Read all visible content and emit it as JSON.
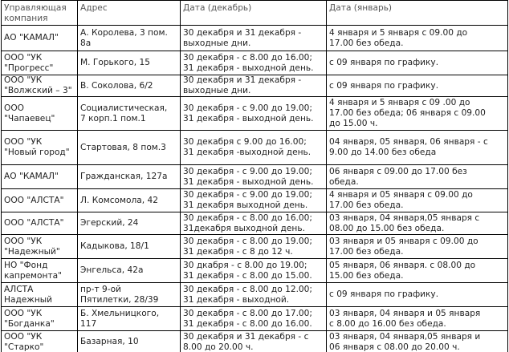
{
  "table": {
    "header": [
      [
        "Управляющая",
        "компания"
      ],
      [
        "Адрес"
      ],
      [
        "Дата (декабрь)"
      ],
      [
        "Дата (январь)"
      ]
    ],
    "rows": [
      [
        [
          "АО \"КАМАЛ\""
        ],
        [
          "А. Королева, 3  пом.",
          "8а"
        ],
        [
          "30 декабря и 31 декабря -",
          "выходные дни."
        ],
        [
          "4 января и 5 января с 09.00 до",
          "17.00 без обеда."
        ]
      ],
      [
        [
          "ООО \"УК",
          "\"Прогресс\""
        ],
        [
          "М. Горького, 15"
        ],
        [
          "30 декабря - с 8.00 до 16.00;",
          "31 декабря - выходной день."
        ],
        [
          "с 09 января по графику."
        ]
      ],
      [
        [
          "ООО \"УК",
          "\"Волжский – 3\""
        ],
        [
          "В. Соколова, 6/2"
        ],
        [
          "30 декабря и 31 декабря -",
          "выходные дни."
        ],
        [
          "с 09 января по графику."
        ]
      ],
      [
        [
          "ООО",
          "\"Чапаевец\""
        ],
        [
          "Социалистическая,",
          "7 корп.1 пом.1"
        ],
        [
          "30 декабря - с 9.00 до 19.00;",
          "31 декабря - выходной день."
        ],
        [
          "4 января и 5 января с 09 .00 до",
          "17.00 без обеда; 06 января с 09.00",
          "до 15.00 ч."
        ]
      ],
      [
        [
          "ООО \"УК",
          "\"Новый город\""
        ],
        [
          "Стартовая, 8 пом.3"
        ],
        [
          "30 декабря с 9.00 до 16.00;",
          "31 декабря -выходной день."
        ],
        [
          "04 января, 05 января, 06 января - с",
          "9.00 до 14.00 без обеда"
        ]
      ],
      [
        [
          "АО \"КАМАЛ\""
        ],
        [
          "Гражданская, 127а"
        ],
        [
          "30 декабря - с 9.00 до 19.00;",
          "31 декабря - выходной день."
        ],
        [
          "06 января с 09.00 до 17.00 без",
          "обеда."
        ]
      ],
      [
        [
          "ООО \"АЛСТА\""
        ],
        [
          "Л. Комсомола, 42"
        ],
        [
          "30 декабря  - с 9.00 до 19.00;",
          "31 декабря выходной день."
        ],
        [
          "4 января и 05 января  с 09.00 до",
          "17.00 без обеда."
        ]
      ],
      [
        [
          "ООО \"АЛСТА\""
        ],
        [
          "Эгерский, 24"
        ],
        [
          "30 декабря - с 8.00 до 16.00;",
          "31декабря выходной день."
        ],
        [
          "03 января, 04 января,05 января с",
          "08.00 до 15.00 без обеда."
        ]
      ],
      [
        [
          "ООО \"УК",
          "\"Надежный\""
        ],
        [
          "Кадыкова, 18/1"
        ],
        [
          "30 декабря - с 8.00 до 19.00;",
          "31 декабря - с 8 до 12 ч."
        ],
        [
          "03 января и 05 января с 09.00 до",
          "17.00 без обеда."
        ]
      ],
      [
        [
          "НО \"Фонд",
          "капремонта\""
        ],
        [
          "Энгельса, 42а"
        ],
        [
          "30 дкабря - с 8.00 до 19.00;",
          "31 декабря - с 8.00 до 15.00."
        ],
        [
          "05 января, 06 января. с 08.00 до",
          "15.00 без обеда."
        ]
      ],
      [
        [
          "АЛСТА",
          "Надежный"
        ],
        [
          "пр-т 9-ой",
          "Пятилетки, 28/39"
        ],
        [
          "30 декабря - с 8.00 до 12.00;",
          "31 декабря - выходной."
        ],
        [
          "с 09 января по графику."
        ]
      ],
      [
        [
          "ООО \"УК",
          "\"Богданка\""
        ],
        [
          "Б. Хмельницкого,",
          "117"
        ],
        [
          "30 декабря - с 8.00 до 17.00;",
          "31 декабря - с 8.00 до 16.00."
        ],
        [
          "03 января, 04 января и 05 января",
          "с 8.00 до 16.00 без обеда."
        ]
      ],
      [
        [
          "ООО \"УК",
          "\"Старко\""
        ],
        [
          "Базарная, 10"
        ],
        [
          "30 декабря и 31 декабря - с",
          "8.00 до 20.00 ч."
        ],
        [
          "03 января, 04 января,05 января и",
          "06 января с 08.00 до 20.00 ч."
        ]
      ]
    ]
  }
}
